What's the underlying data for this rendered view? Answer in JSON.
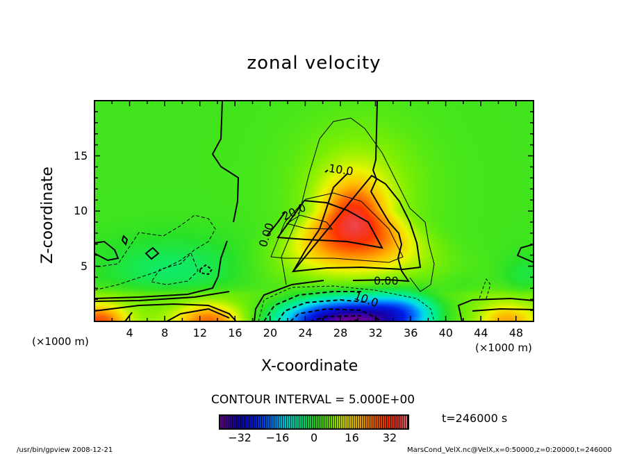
{
  "chart_data": {
    "type": "heatmap",
    "subtype": "filled contour",
    "title": "zonal velocity",
    "xlabel": "X-coordinate",
    "ylabel": "Z-coordinate",
    "x_unit": "(×1000 m)",
    "z_unit": "(×1000 m)",
    "xlim": [
      0,
      50
    ],
    "ylim": [
      0,
      20
    ],
    "x_ticks": [
      "4",
      "8",
      "12",
      "16",
      "20",
      "24",
      "28",
      "32",
      "36",
      "40",
      "44",
      "48"
    ],
    "x_tick_values": [
      4,
      8,
      12,
      16,
      20,
      24,
      28,
      32,
      36,
      40,
      44,
      48
    ],
    "y_ticks": [
      "5",
      "10",
      "15"
    ],
    "y_tick_values": [
      5,
      10,
      15
    ],
    "contour_labels": [
      "0.00",
      "10.0",
      "20.0",
      "0.00",
      "10.0"
    ],
    "contour_interval": "CONTOUR INTERVAL = 5.000E+00",
    "colorbar": {
      "ticks": [
        "−32",
        "−16",
        "0",
        "16",
        "32"
      ],
      "tick_values": [
        -32,
        -16,
        0,
        16,
        32
      ],
      "range": [
        -40,
        40
      ]
    },
    "time_label": "t=246000 s"
  },
  "footer": {
    "left": "/usr/bin/gpview   2008-12-21",
    "right": "MarsCond_VelX.nc@VelX,x=0:50000,z=0:20000,t=246000"
  }
}
